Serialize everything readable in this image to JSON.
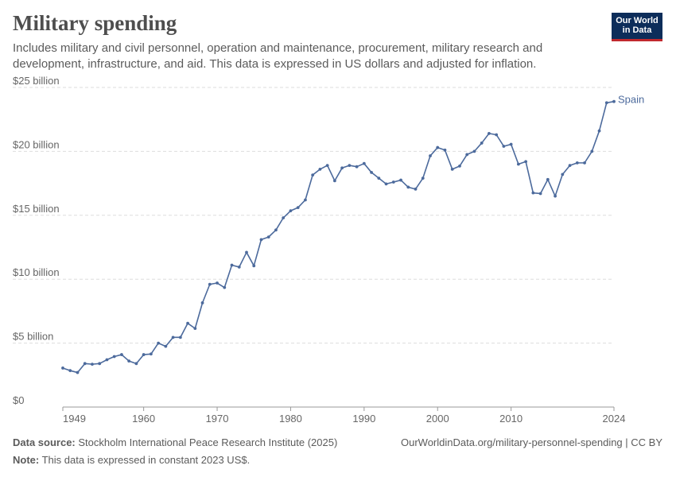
{
  "header": {
    "title": "Military spending",
    "subtitle": "Includes military and civil personnel, operation and maintenance, procurement, military research and development, infrastructure, and aid. This data is expressed in US dollars and adjusted for inflation.",
    "logo_line1": "Our World",
    "logo_line2": "in Data"
  },
  "footer": {
    "source_label": "Data source:",
    "source_text": "Stockholm International Peace Research Institute (2025)",
    "note_label": "Note:",
    "note_text": "This data is expressed in constant 2023 US$.",
    "url_text": "OurWorldinData.org/military-personnel-spending | CC BY"
  },
  "colors": {
    "series": "#4c6a9c",
    "grid": "#dddddd",
    "axis": "#999999"
  },
  "chart_data": {
    "type": "line",
    "title": "Military spending",
    "xlabel": "",
    "ylabel": "",
    "xlim": [
      1949,
      2024
    ],
    "ylim": [
      0,
      25
    ],
    "y_ticks": [
      {
        "value": 0,
        "label": "$0"
      },
      {
        "value": 5,
        "label": "$5 billion"
      },
      {
        "value": 10,
        "label": "$10 billion"
      },
      {
        "value": 15,
        "label": "$15 billion"
      },
      {
        "value": 20,
        "label": "$20 billion"
      },
      {
        "value": 25,
        "label": "$25 billion"
      }
    ],
    "x_ticks": [
      {
        "value": 1949,
        "label": "1949"
      },
      {
        "value": 1960,
        "label": "1960"
      },
      {
        "value": 1970,
        "label": "1970"
      },
      {
        "value": 1980,
        "label": "1980"
      },
      {
        "value": 1990,
        "label": "1990"
      },
      {
        "value": 2000,
        "label": "2000"
      },
      {
        "value": 2010,
        "label": "2010"
      },
      {
        "value": 2024,
        "label": "2024"
      }
    ],
    "grid": true,
    "series": [
      {
        "name": "Spain",
        "x": [
          1949,
          1950,
          1951,
          1952,
          1953,
          1954,
          1955,
          1956,
          1957,
          1958,
          1959,
          1960,
          1961,
          1962,
          1963,
          1964,
          1965,
          1966,
          1967,
          1968,
          1969,
          1970,
          1971,
          1972,
          1973,
          1974,
          1975,
          1976,
          1977,
          1978,
          1979,
          1980,
          1981,
          1982,
          1983,
          1984,
          1985,
          1986,
          1987,
          1988,
          1989,
          1990,
          1991,
          1992,
          1993,
          1994,
          1995,
          1996,
          1997,
          1998,
          1999,
          2000,
          2001,
          2002,
          2003,
          2004,
          2005,
          2006,
          2007,
          2008,
          2009,
          2010,
          2011,
          2012,
          2013,
          2014,
          2015,
          2016,
          2017,
          2018,
          2019,
          2020,
          2021,
          2022,
          2023,
          2024
        ],
        "values": [
          3.05,
          2.85,
          2.7,
          3.4,
          3.35,
          3.4,
          3.7,
          3.95,
          4.1,
          3.6,
          3.4,
          4.1,
          4.15,
          5.0,
          4.75,
          5.45,
          5.45,
          6.55,
          6.15,
          8.15,
          9.6,
          9.7,
          9.35,
          11.1,
          10.95,
          12.1,
          11.05,
          13.1,
          13.3,
          13.85,
          14.8,
          15.35,
          15.6,
          16.2,
          18.15,
          18.6,
          18.9,
          17.7,
          18.7,
          18.9,
          18.8,
          19.05,
          18.35,
          17.9,
          17.45,
          17.6,
          17.75,
          17.2,
          17.05,
          17.9,
          19.65,
          20.3,
          20.1,
          18.6,
          18.85,
          19.75,
          20.0,
          20.65,
          21.4,
          21.3,
          20.4,
          20.55,
          19.0,
          19.2,
          16.75,
          16.7,
          17.8,
          16.5,
          18.2,
          18.9,
          19.1,
          19.1,
          20.0,
          21.6,
          23.8,
          23.9
        ]
      }
    ]
  }
}
